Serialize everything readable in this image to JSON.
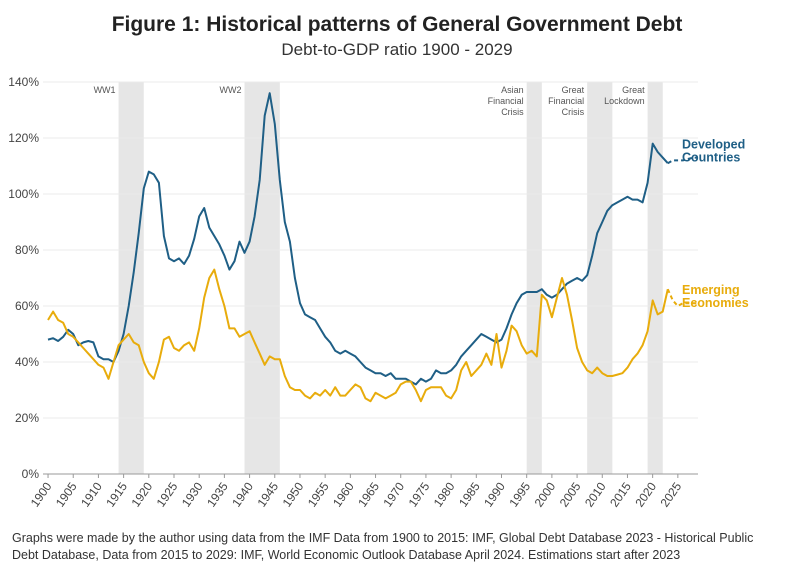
{
  "chart_data": {
    "type": "line",
    "title": "Figure 1: Historical patterns of General Government Debt",
    "subtitle": "Debt-to-GDP ratio 1900 - 2029",
    "note": "Graphs were made by the author using data from the IMF Data from 1900 to 2015: IMF, Global Debt Database 2023 - Historical Public Debt Database, Data from 2015 to 2029: IMF, World Economic Outlook Database April 2024. Estimations start after 2023",
    "x": [
      1900,
      1901,
      1902,
      1903,
      1904,
      1905,
      1906,
      1907,
      1908,
      1909,
      1910,
      1911,
      1912,
      1913,
      1914,
      1915,
      1916,
      1917,
      1918,
      1919,
      1920,
      1921,
      1922,
      1923,
      1924,
      1925,
      1926,
      1927,
      1928,
      1929,
      1930,
      1931,
      1932,
      1933,
      1934,
      1935,
      1936,
      1937,
      1938,
      1939,
      1940,
      1941,
      1942,
      1943,
      1944,
      1945,
      1946,
      1947,
      1948,
      1949,
      1950,
      1951,
      1952,
      1953,
      1954,
      1955,
      1956,
      1957,
      1958,
      1959,
      1960,
      1961,
      1962,
      1963,
      1964,
      1965,
      1966,
      1967,
      1968,
      1969,
      1970,
      1971,
      1972,
      1973,
      1974,
      1975,
      1976,
      1977,
      1978,
      1979,
      1980,
      1981,
      1982,
      1983,
      1984,
      1985,
      1986,
      1987,
      1988,
      1989,
      1990,
      1991,
      1992,
      1993,
      1994,
      1995,
      1996,
      1997,
      1998,
      1999,
      2000,
      2001,
      2002,
      2003,
      2004,
      2005,
      2006,
      2007,
      2008,
      2009,
      2010,
      2011,
      2012,
      2013,
      2014,
      2015,
      2016,
      2017,
      2018,
      2019,
      2020,
      2021,
      2022,
      2023,
      2024,
      2025,
      2026,
      2027,
      2028,
      2029
    ],
    "series": [
      {
        "name": "Developed Countries",
        "color": "#1f5f86",
        "values": [
          48,
          48.5,
          47.5,
          49,
          51.5,
          50,
          46,
          47,
          47.5,
          47,
          42,
          41,
          41,
          40,
          44,
          50,
          60,
          72,
          86,
          102,
          108,
          107,
          104,
          85,
          77,
          76,
          77,
          75,
          78,
          84,
          92,
          95,
          88,
          85,
          82,
          78,
          73,
          76,
          83,
          79,
          83,
          92,
          105,
          128,
          136,
          125,
          105,
          90,
          83,
          70,
          61,
          57,
          56,
          55,
          52,
          49,
          47,
          44,
          43,
          44,
          43,
          42,
          40,
          38,
          37,
          36,
          36,
          35,
          36,
          34,
          34,
          34,
          33,
          32,
          34,
          33,
          34,
          37,
          36,
          36,
          37,
          39,
          42,
          44,
          46,
          48,
          50,
          49,
          48,
          47,
          48,
          52,
          57,
          61,
          64,
          65,
          65,
          65,
          66,
          64,
          63,
          64,
          66,
          68,
          69,
          70,
          69,
          71,
          78,
          86,
          90,
          94,
          96,
          97,
          98,
          99,
          98,
          98,
          97,
          104,
          118,
          115,
          113,
          111,
          112,
          112,
          112,
          112.5,
          113,
          113
        ]
      },
      {
        "name": "Emerging Economies",
        "color": "#e8ac0c",
        "values": [
          55,
          58,
          55,
          54,
          50,
          49,
          47,
          45,
          43,
          41,
          39,
          38,
          34,
          40,
          46,
          48,
          50,
          47,
          46,
          40,
          36,
          34,
          40,
          48,
          49,
          45,
          44,
          46,
          47,
          44,
          52,
          63,
          70,
          73,
          66,
          60,
          52,
          52,
          49,
          50,
          51,
          47,
          43,
          39,
          42,
          41,
          41,
          35,
          31,
          30,
          30,
          28,
          27,
          29,
          28,
          30,
          28,
          31,
          28,
          28,
          30,
          32,
          31,
          27,
          26,
          29,
          28,
          27,
          28,
          29,
          32,
          33,
          33,
          30,
          26,
          30,
          31,
          31,
          31,
          28,
          27,
          30,
          37,
          40,
          35,
          37,
          39,
          43,
          39,
          50,
          38,
          44,
          53,
          51,
          46,
          43,
          44,
          42,
          64,
          62,
          56,
          63,
          70,
          64,
          55,
          45,
          40,
          37,
          36,
          38,
          36,
          35,
          35,
          35.5,
          36,
          38,
          41,
          43,
          46,
          51,
          62,
          57,
          58,
          66,
          62,
          60,
          61,
          61,
          61,
          61
        ]
      }
    ],
    "estimates_after": 2023,
    "xlim": [
      1899,
      2029
    ],
    "xticks": [
      1900,
      1905,
      1910,
      1915,
      1920,
      1925,
      1930,
      1935,
      1940,
      1945,
      1950,
      1955,
      1960,
      1965,
      1970,
      1975,
      1980,
      1985,
      1990,
      1995,
      2000,
      2005,
      2010,
      2015,
      2020,
      2025
    ],
    "ylim": [
      0,
      140
    ],
    "yticks": [
      {
        "value": 0,
        "label": "0%"
      },
      {
        "value": 20,
        "label": "20%"
      },
      {
        "value": 40,
        "label": "40%"
      },
      {
        "value": 60,
        "label": "60%"
      },
      {
        "value": 80,
        "label": "80%"
      },
      {
        "value": 100,
        "label": "100%"
      },
      {
        "value": 120,
        "label": "120%"
      },
      {
        "value": 140,
        "label": "140%"
      }
    ],
    "grid": true,
    "shaded_periods": [
      {
        "label": [
          "WW1"
        ],
        "start": 1914,
        "end": 1919
      },
      {
        "label": [
          "WW2"
        ],
        "start": 1939,
        "end": 1946
      },
      {
        "label": [
          "Asian",
          "Financial",
          "Crisis"
        ],
        "start": 1995,
        "end": 1998
      },
      {
        "label": [
          "Great",
          "Financial",
          "Crisis"
        ],
        "start": 2007,
        "end": 2012
      },
      {
        "label": [
          "Great",
          "Lockdown"
        ],
        "start": 2019,
        "end": 2022
      }
    ]
  }
}
